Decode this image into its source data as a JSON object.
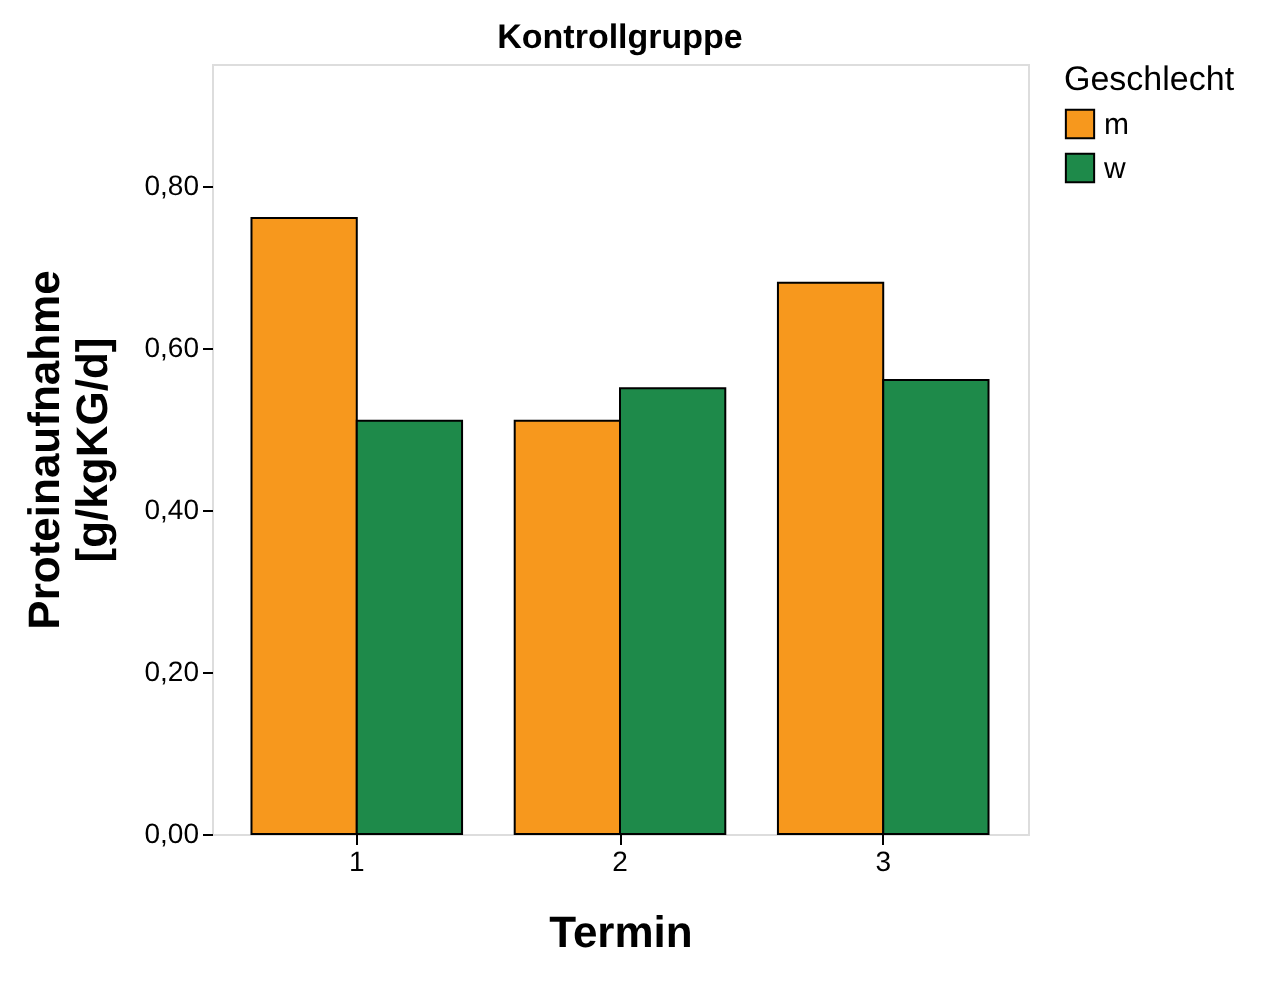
{
  "chart_data": {
    "type": "bar",
    "title": "Kontrollgruppe",
    "xlabel": "Termin",
    "ylabel": "Proteinaufnahme\n[g/kgKG/d]",
    "legend_title": "Geschlecht",
    "categories": [
      "1",
      "2",
      "3"
    ],
    "series": [
      {
        "name": "m",
        "color": "#f7981d",
        "values": [
          0.76,
          0.51,
          0.68
        ]
      },
      {
        "name": "w",
        "color": "#1e8a4a",
        "values": [
          0.51,
          0.55,
          0.56
        ]
      }
    ],
    "ylim": [
      0,
      0.95
    ],
    "yticks": [
      {
        "value": 0,
        "label": "0,00"
      },
      {
        "value": 0.2,
        "label": "0,20"
      },
      {
        "value": 0.4,
        "label": "0,40"
      },
      {
        "value": 0.6,
        "label": "0,60"
      },
      {
        "value": 0.8,
        "label": "0,80"
      }
    ],
    "grid": false,
    "legend": "top right"
  }
}
